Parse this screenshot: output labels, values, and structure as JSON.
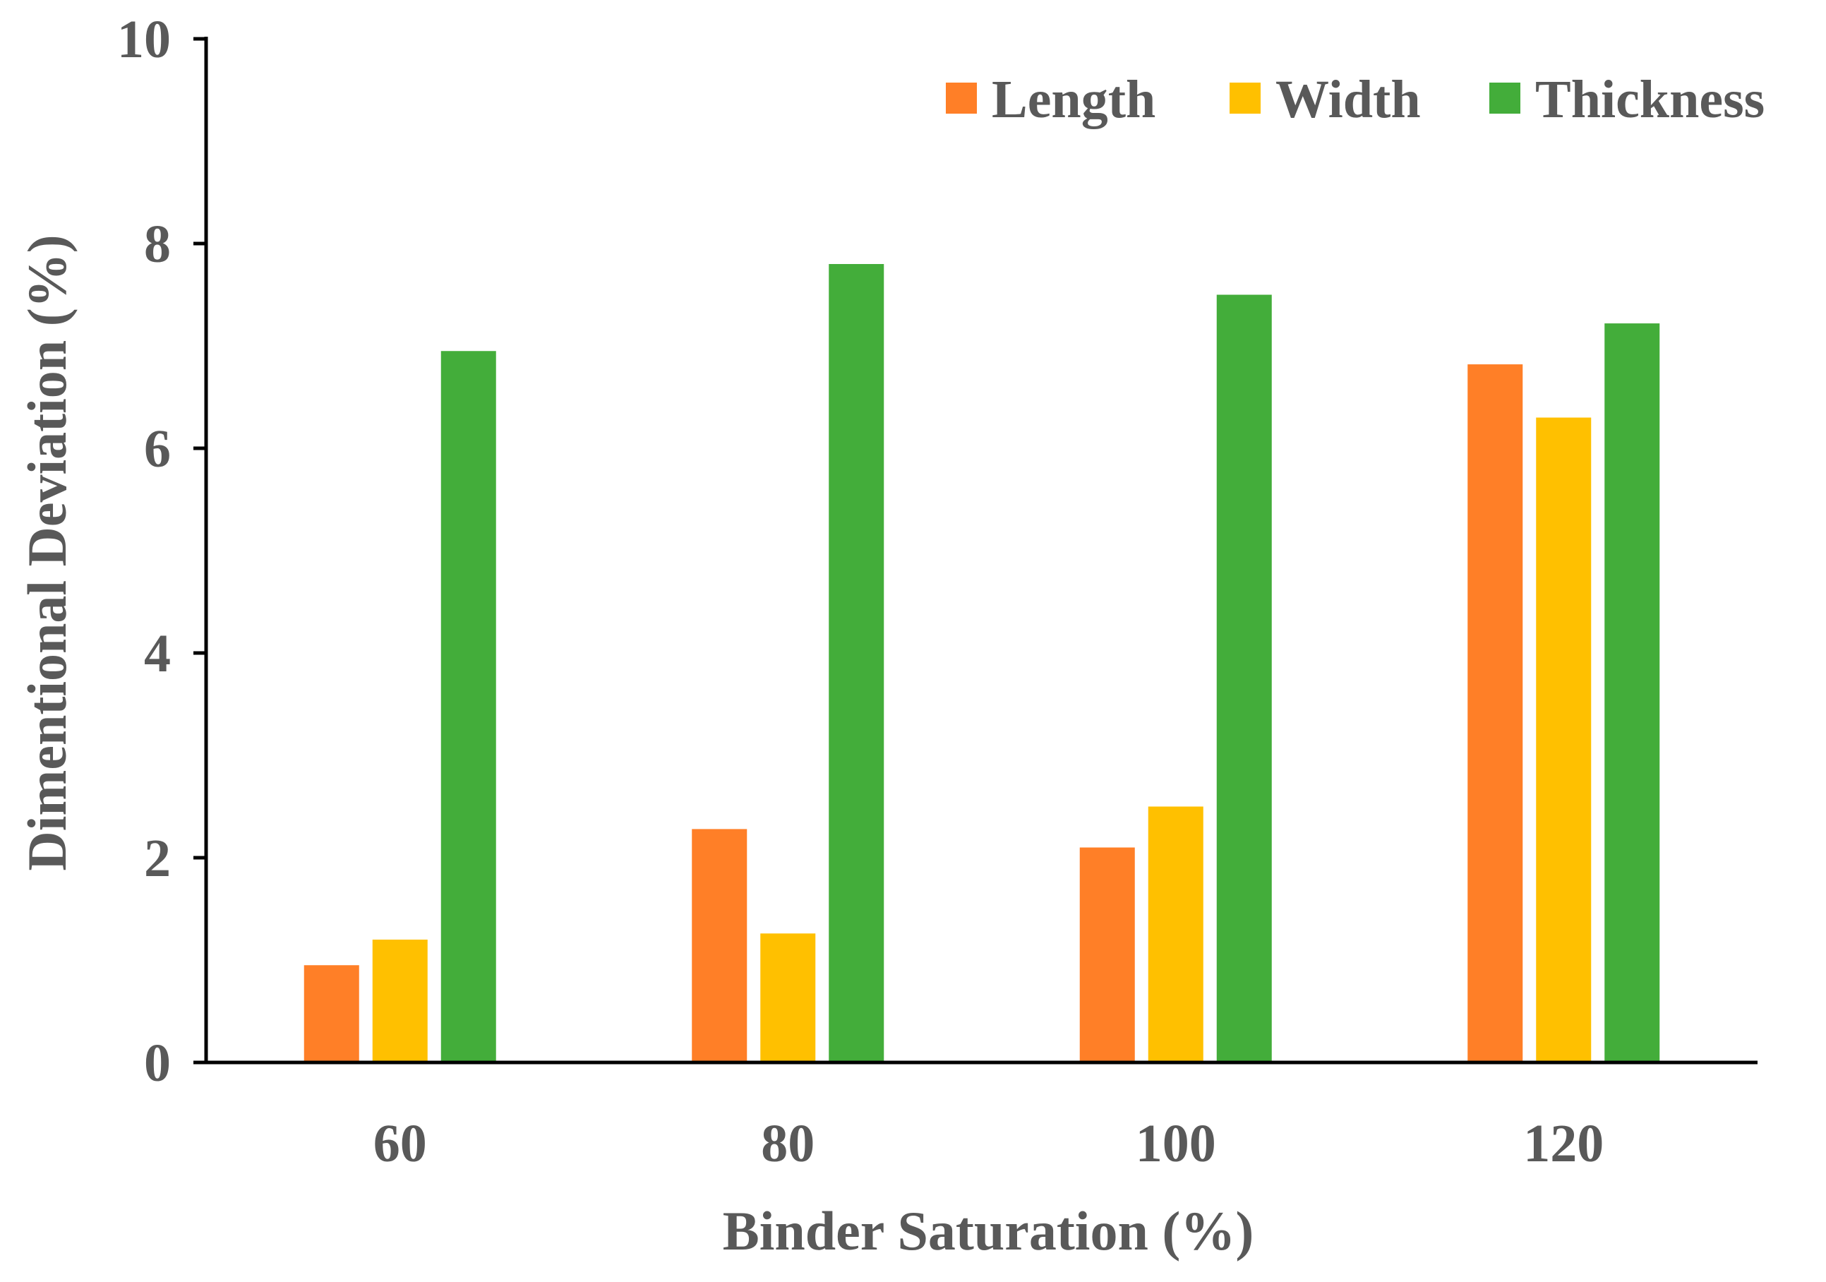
{
  "chart_data": {
    "type": "bar",
    "xlabel": "Binder Saturation (%)",
    "ylabel": "Dimentional Deviation (%)",
    "categories": [
      "60",
      "80",
      "100",
      "120"
    ],
    "ylim": [
      0,
      10
    ],
    "yticks": [
      "0",
      "2",
      "4",
      "6",
      "8",
      "10"
    ],
    "grid": false,
    "legend_position": "top-right",
    "series": [
      {
        "name": "Length",
        "color": "#FF7F27",
        "values": [
          0.95,
          2.28,
          2.1,
          6.82
        ]
      },
      {
        "name": "Width",
        "color": "#FFC000",
        "values": [
          1.2,
          1.26,
          2.5,
          6.3
        ]
      },
      {
        "name": "Thickness",
        "color": "#43AD3A",
        "values": [
          6.95,
          7.8,
          7.5,
          7.22
        ]
      }
    ]
  }
}
